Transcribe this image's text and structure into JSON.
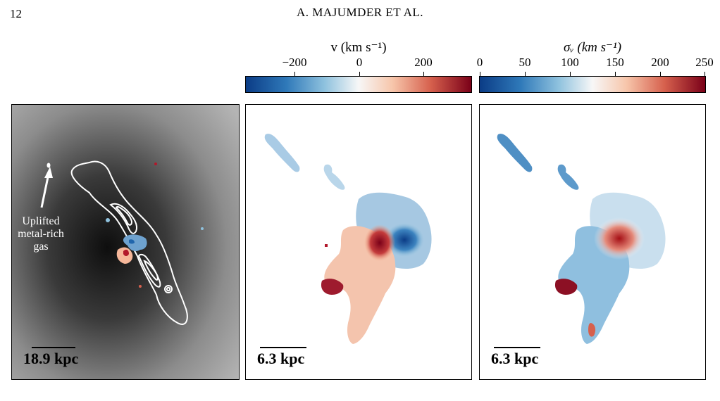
{
  "header": {
    "page_number": "12",
    "running_head": "A. MAJUMDER ET AL."
  },
  "colorbars": [
    {
      "title": "v (km s⁻¹)",
      "ticks": [
        "−200",
        "0",
        "200"
      ],
      "tick_values": [
        -200,
        0,
        200
      ],
      "range": [
        -360,
        360
      ],
      "colormap": "RdBu_r",
      "colors": {
        "low": "#0b3c86",
        "mid": "#f7f7f7",
        "high": "#7a0018"
      }
    },
    {
      "title": "σᵥ (km s⁻¹)",
      "ticks": [
        "0",
        "50",
        "100",
        "150",
        "200",
        "250"
      ],
      "tick_values": [
        0,
        50,
        100,
        150,
        200,
        250
      ],
      "range": [
        0,
        250
      ],
      "colormap": "RdBu_r",
      "colors": {
        "low": "#0b3c86",
        "mid": "#f7f7f7",
        "high": "#7a0018"
      }
    }
  ],
  "panels": [
    {
      "name": "xray-map",
      "background": "grayscale",
      "contour_color": "#ffffff",
      "scale_bar_label": "18.9 kpc",
      "annotation": [
        "Uplifted",
        "metal-rich",
        "gas"
      ]
    },
    {
      "name": "velocity-map",
      "scale_bar_label": "6.3 kpc"
    },
    {
      "name": "dispersion-map",
      "scale_bar_label": "6.3 kpc"
    }
  ]
}
